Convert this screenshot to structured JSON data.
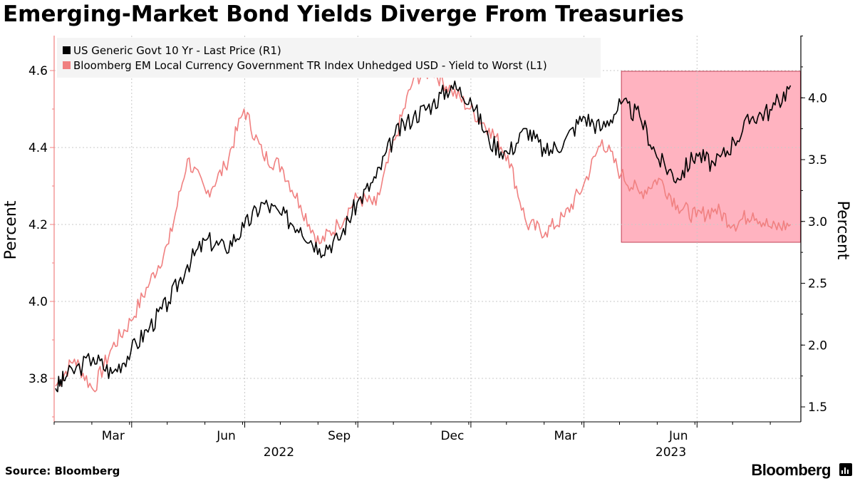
{
  "title": "Emerging-Market Bond Yields Diverge From Treasuries",
  "source": "Source: Bloomberg",
  "brand": "Bloomberg",
  "colors": {
    "treasury": "#000000",
    "em": "#f08080",
    "highlight": "#ffb3c0",
    "highlight_border": "#c24055",
    "grid": "#c8c8c8"
  },
  "chart_data": {
    "type": "line",
    "title": "Emerging-Market Bond Yields Diverge From Treasuries",
    "x_range": [
      "2022-01-01",
      "2023-07-31"
    ],
    "x_tick_labels": [
      "Mar",
      "Jun",
      "Sep",
      "Dec",
      "Mar",
      "Jun"
    ],
    "x_year_labels": [
      "2022",
      "2023"
    ],
    "left_axis": {
      "label": "Percent",
      "range": [
        3.7,
        4.7
      ],
      "ticks": [
        3.8,
        4.0,
        4.2,
        4.4,
        4.6
      ],
      "tick_labels": [
        "3.8",
        "4.0",
        "4.2",
        "4.4",
        "4.6"
      ]
    },
    "right_axis": {
      "label": "Percent",
      "range": [
        1.4,
        4.5
      ],
      "ticks": [
        1.5,
        2.0,
        2.5,
        3.0,
        3.5,
        4.0
      ],
      "tick_labels": [
        "1.5",
        "2.0",
        "2.5",
        "3.0",
        "3.5",
        "4.0"
      ]
    },
    "legend": [
      "US Generic Govt 10 Yr - Last Price (R1)",
      "Bloomberg EM Local Currency Government TR Index Unhedged USD - Yield to Worst (L1)"
    ],
    "highlight_period": [
      "2023-04-02",
      "2023-08-01"
    ],
    "series": [
      {
        "name": "US Generic Govt 10 Yr - Last Price (R1)",
        "axis": "right",
        "t": [
          0.0,
          0.3,
          1.0,
          1.5,
          2.0,
          2.5,
          3.0,
          3.5,
          4.0,
          4.5,
          5.0,
          5.5,
          6.0,
          6.5,
          7.0,
          7.5,
          8.0,
          8.5,
          9.0,
          9.5,
          10.0,
          10.5,
          11.0,
          11.5,
          12.0,
          12.5,
          13.0,
          13.5,
          14.0,
          14.5,
          15.0,
          15.5,
          16.0,
          16.5,
          17.0,
          17.5,
          18.0,
          18.5,
          19.0,
          19.5
        ],
        "values": [
          1.65,
          1.75,
          1.9,
          1.77,
          1.95,
          2.15,
          2.35,
          2.65,
          2.85,
          2.78,
          2.95,
          3.15,
          3.05,
          2.95,
          2.78,
          2.85,
          3.15,
          3.35,
          3.7,
          3.85,
          3.95,
          4.1,
          4.0,
          3.65,
          3.55,
          3.75,
          3.55,
          3.65,
          3.85,
          3.75,
          3.95,
          3.85,
          3.5,
          3.35,
          3.55,
          3.45,
          3.65,
          3.85,
          3.9,
          4.1
        ]
      },
      {
        "name": "Bloomberg EM Local Currency Government TR Index Unhedged USD - Yield to Worst (L1)",
        "axis": "left",
        "t": [
          0.0,
          0.5,
          1.0,
          1.5,
          2.0,
          2.5,
          3.0,
          3.5,
          4.0,
          4.5,
          5.0,
          5.5,
          6.0,
          6.5,
          7.0,
          7.5,
          8.0,
          8.5,
          9.0,
          9.5,
          10.0,
          10.5,
          11.0,
          11.5,
          12.0,
          12.5,
          13.0,
          13.5,
          14.0,
          14.5,
          15.0,
          15.5,
          16.0,
          16.5,
          17.0,
          17.5,
          18.0,
          18.5,
          19.0,
          19.5
        ],
        "values": [
          3.78,
          3.85,
          3.77,
          3.88,
          3.95,
          4.05,
          4.15,
          4.37,
          4.28,
          4.35,
          4.5,
          4.38,
          4.35,
          4.25,
          4.15,
          4.2,
          4.27,
          4.25,
          4.42,
          4.58,
          4.6,
          4.55,
          4.5,
          4.45,
          4.38,
          4.2,
          4.18,
          4.22,
          4.3,
          4.42,
          4.33,
          4.28,
          4.32,
          4.25,
          4.22,
          4.24,
          4.2,
          4.23,
          4.19,
          4.2
        ]
      }
    ]
  }
}
